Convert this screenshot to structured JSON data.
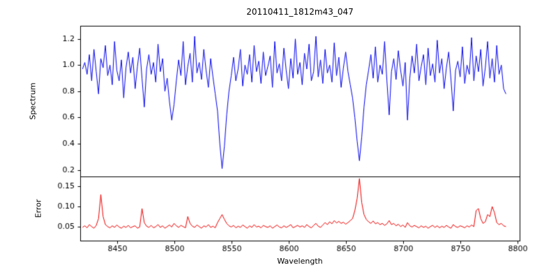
{
  "figure": {
    "background": "#ffffff"
  },
  "chart_data": [
    {
      "type": "line",
      "name": "spectrum-panel",
      "title": "20110411_1812m43_047",
      "ylabel": "Spectrum",
      "color": "#0000ee",
      "xlim": [
        8418,
        8802
      ],
      "ylim": [
        0.15,
        1.3
      ],
      "grid": false,
      "yticks": [
        {
          "v": 0.2,
          "label": "0.2"
        },
        {
          "v": 0.4,
          "label": "0.4"
        },
        {
          "v": 0.6,
          "label": "0.6"
        },
        {
          "v": 0.8,
          "label": "0.8"
        },
        {
          "v": 1.0,
          "label": "1.0"
        },
        {
          "v": 1.2,
          "label": "1.2"
        }
      ],
      "x_start": 8420,
      "x_step": 2,
      "values": [
        0.97,
        1.02,
        0.93,
        1.08,
        0.88,
        1.12,
        0.95,
        0.78,
        1.05,
        0.98,
        1.15,
        0.92,
        1.0,
        0.85,
        1.18,
        0.96,
        0.88,
        1.04,
        0.75,
        0.98,
        1.1,
        0.94,
        1.06,
        0.82,
        0.99,
        1.13,
        0.9,
        0.68,
        0.97,
        1.08,
        0.93,
        1.02,
        0.87,
        1.16,
        0.95,
        1.05,
        0.8,
        0.9,
        0.72,
        0.58,
        0.7,
        0.88,
        1.04,
        0.92,
        1.18,
        0.85,
        0.99,
        1.09,
        0.87,
        1.22,
        0.94,
        1.02,
        0.89,
        1.12,
        0.96,
        0.83,
        1.05,
        0.91,
        0.78,
        0.65,
        0.4,
        0.21,
        0.38,
        0.62,
        0.8,
        0.92,
        1.06,
        0.88,
        0.97,
        1.12,
        0.84,
        1.0,
        0.93,
        1.08,
        0.87,
        1.15,
        0.95,
        1.03,
        0.86,
        1.1,
        0.92,
        0.99,
        1.07,
        0.83,
        1.18,
        0.94,
        1.01,
        0.88,
        1.13,
        0.96,
        0.82,
        1.05,
        0.9,
        1.2,
        0.93,
        1.02,
        0.85,
        1.09,
        0.97,
        1.16,
        0.88,
        0.95,
        1.22,
        0.91,
        1.04,
        0.86,
        1.12,
        0.94,
        1.0,
        0.87,
        1.17,
        0.92,
        1.06,
        0.83,
        0.98,
        1.1,
        0.95,
        0.85,
        0.75,
        0.6,
        0.42,
        0.27,
        0.45,
        0.68,
        0.85,
        0.96,
        1.08,
        0.9,
        1.14,
        0.87,
        1.0,
        0.93,
        1.18,
        0.88,
        0.62,
        0.95,
        1.05,
        0.89,
        1.11,
        0.96,
        0.84,
        1.02,
        0.58,
        0.9,
        1.07,
        0.94,
        1.16,
        0.88,
        0.99,
        1.08,
        0.85,
        1.13,
        0.92,
        1.01,
        0.87,
        1.19,
        0.94,
        1.05,
        0.82,
        0.98,
        1.1,
        0.89,
        0.65,
        0.96,
        1.03,
        0.91,
        1.14,
        0.86,
        1.0,
        0.93,
        1.21,
        0.88,
        1.07,
        0.95,
        1.12,
        0.84,
        0.98,
        1.18,
        0.9,
        1.05,
        0.87,
        1.15,
        0.93,
        1.0,
        0.82,
        0.78
      ]
    },
    {
      "type": "line",
      "name": "error-panel",
      "ylabel": "Error",
      "xlabel": "Wavelength",
      "color": "#ee0000",
      "xlim": [
        8418,
        8802
      ],
      "ylim": [
        0.015,
        0.175
      ],
      "grid": false,
      "yticks": [
        {
          "v": 0.05,
          "label": "0.05"
        },
        {
          "v": 0.1,
          "label": "0.10"
        },
        {
          "v": 0.15,
          "label": "0.15"
        }
      ],
      "xticks": [
        {
          "v": 8450,
          "label": "8450"
        },
        {
          "v": 8500,
          "label": "8500"
        },
        {
          "v": 8550,
          "label": "8550"
        },
        {
          "v": 8600,
          "label": "8600"
        },
        {
          "v": 8650,
          "label": "8650"
        },
        {
          "v": 8700,
          "label": "8700"
        },
        {
          "v": 8750,
          "label": "8750"
        },
        {
          "v": 8800,
          "label": "8800"
        }
      ],
      "x_start": 8420,
      "x_step": 2,
      "values": [
        0.048,
        0.052,
        0.047,
        0.055,
        0.05,
        0.046,
        0.053,
        0.07,
        0.13,
        0.075,
        0.055,
        0.05,
        0.047,
        0.052,
        0.048,
        0.054,
        0.049,
        0.046,
        0.051,
        0.048,
        0.053,
        0.047,
        0.05,
        0.052,
        0.046,
        0.049,
        0.095,
        0.06,
        0.051,
        0.048,
        0.053,
        0.047,
        0.05,
        0.055,
        0.048,
        0.052,
        0.046,
        0.05,
        0.054,
        0.049,
        0.058,
        0.052,
        0.048,
        0.053,
        0.05,
        0.047,
        0.075,
        0.058,
        0.051,
        0.048,
        0.054,
        0.05,
        0.046,
        0.052,
        0.049,
        0.055,
        0.048,
        0.051,
        0.047,
        0.06,
        0.07,
        0.08,
        0.068,
        0.058,
        0.052,
        0.049,
        0.053,
        0.047,
        0.051,
        0.048,
        0.054,
        0.05,
        0.046,
        0.052,
        0.048,
        0.055,
        0.049,
        0.051,
        0.047,
        0.053,
        0.05,
        0.048,
        0.052,
        0.046,
        0.05,
        0.054,
        0.049,
        0.047,
        0.052,
        0.048,
        0.051,
        0.055,
        0.047,
        0.05,
        0.053,
        0.049,
        0.052,
        0.048,
        0.055,
        0.05,
        0.047,
        0.053,
        0.058,
        0.051,
        0.048,
        0.054,
        0.06,
        0.055,
        0.062,
        0.057,
        0.065,
        0.059,
        0.063,
        0.058,
        0.061,
        0.056,
        0.06,
        0.065,
        0.07,
        0.09,
        0.12,
        0.17,
        0.11,
        0.08,
        0.068,
        0.062,
        0.058,
        0.064,
        0.057,
        0.06,
        0.055,
        0.058,
        0.053,
        0.057,
        0.065,
        0.055,
        0.058,
        0.052,
        0.056,
        0.05,
        0.054,
        0.048,
        0.06,
        0.052,
        0.049,
        0.053,
        0.05,
        0.047,
        0.052,
        0.048,
        0.051,
        0.046,
        0.05,
        0.053,
        0.048,
        0.052,
        0.047,
        0.051,
        0.048,
        0.053,
        0.049,
        0.046,
        0.055,
        0.05,
        0.048,
        0.052,
        0.05,
        0.047,
        0.052,
        0.049,
        0.054,
        0.05,
        0.09,
        0.095,
        0.07,
        0.058,
        0.062,
        0.08,
        0.075,
        0.1,
        0.085,
        0.06,
        0.055,
        0.058,
        0.052,
        0.05
      ]
    }
  ]
}
